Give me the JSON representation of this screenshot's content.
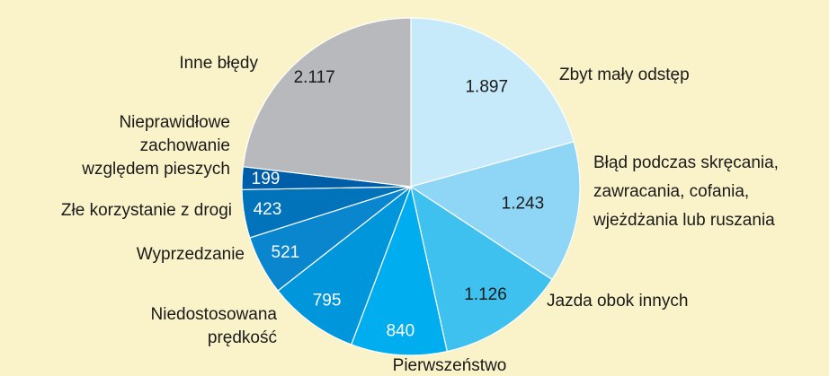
{
  "chart_data": {
    "type": "pie",
    "categories": [
      "Zbyt mały odstęp",
      "Błąd podczas skręcania,\nzawracania, cofania,\nwjeżdżania lub ruszania",
      "Jazda obok innych",
      "Pierwszeństwo",
      "Niedostosowana\nprędkość",
      "Wyprzedzanie",
      "Złe korzystanie z drogi",
      "Nieprawidłowe\nzachowanie\nwzględem pieszych",
      "Inne błędy"
    ],
    "values": [
      1897,
      1243,
      1126,
      840,
      795,
      521,
      423,
      199,
      2117
    ],
    "value_labels": [
      "1.897",
      "1.243",
      "1.126",
      "840",
      "795",
      "521",
      "423",
      "199",
      "2.117"
    ],
    "colors": [
      "#c7eafb",
      "#8fd5f6",
      "#3fc1ef",
      "#00aeef",
      "#0096db",
      "#0a86cf",
      "#0073bb",
      "#005ea8",
      "#b8b9bc"
    ],
    "start_angle": 0,
    "direction": "clockwise"
  }
}
